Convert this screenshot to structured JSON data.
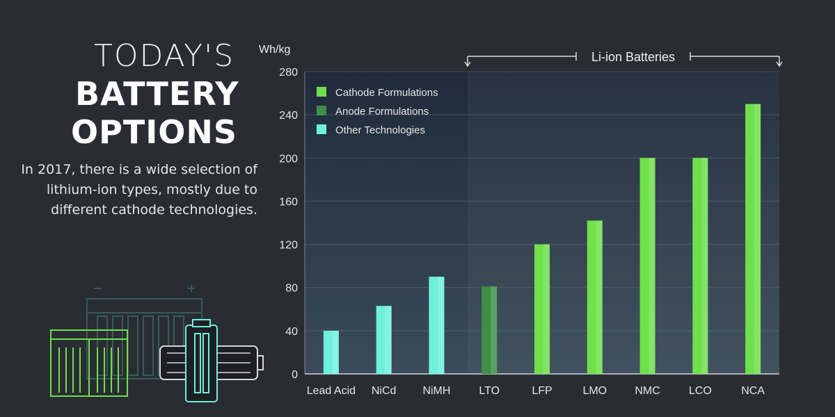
{
  "heading": {
    "line1": "TODAY'S",
    "line2": "BATTERY",
    "line3": "OPTIONS",
    "subtitle": "In 2017, there is a wide selection of lithium-ion types, mostly due to different cathode technologies."
  },
  "colors": {
    "background": "#2a2c33",
    "cathode": "#6fe04b",
    "anode": "#3f8f4a",
    "other": "#6ff0dd"
  },
  "chart_data": {
    "type": "bar",
    "ylabel": "Wh/kg",
    "ylim": [
      0,
      280
    ],
    "yticks": [
      0,
      40,
      80,
      120,
      160,
      200,
      240,
      280
    ],
    "grid": true,
    "legend_position": "top-left",
    "bracket_label": "Li-ion Batteries",
    "categories": [
      "Lead Acid",
      "NiCd",
      "NiMH",
      "LTO",
      "LFP",
      "LMO",
      "NMC",
      "LCO",
      "NCA"
    ],
    "values": [
      40,
      63,
      90,
      81,
      120,
      142,
      200,
      200,
      250
    ],
    "groups": [
      "Other Technologies",
      "Other Technologies",
      "Other Technologies",
      "Anode Formulations",
      "Cathode Formulations",
      "Cathode Formulations",
      "Cathode Formulations",
      "Cathode Formulations",
      "Cathode Formulations"
    ],
    "legend": [
      "Cathode Formulations",
      "Anode Formulations",
      "Other Technologies"
    ]
  }
}
